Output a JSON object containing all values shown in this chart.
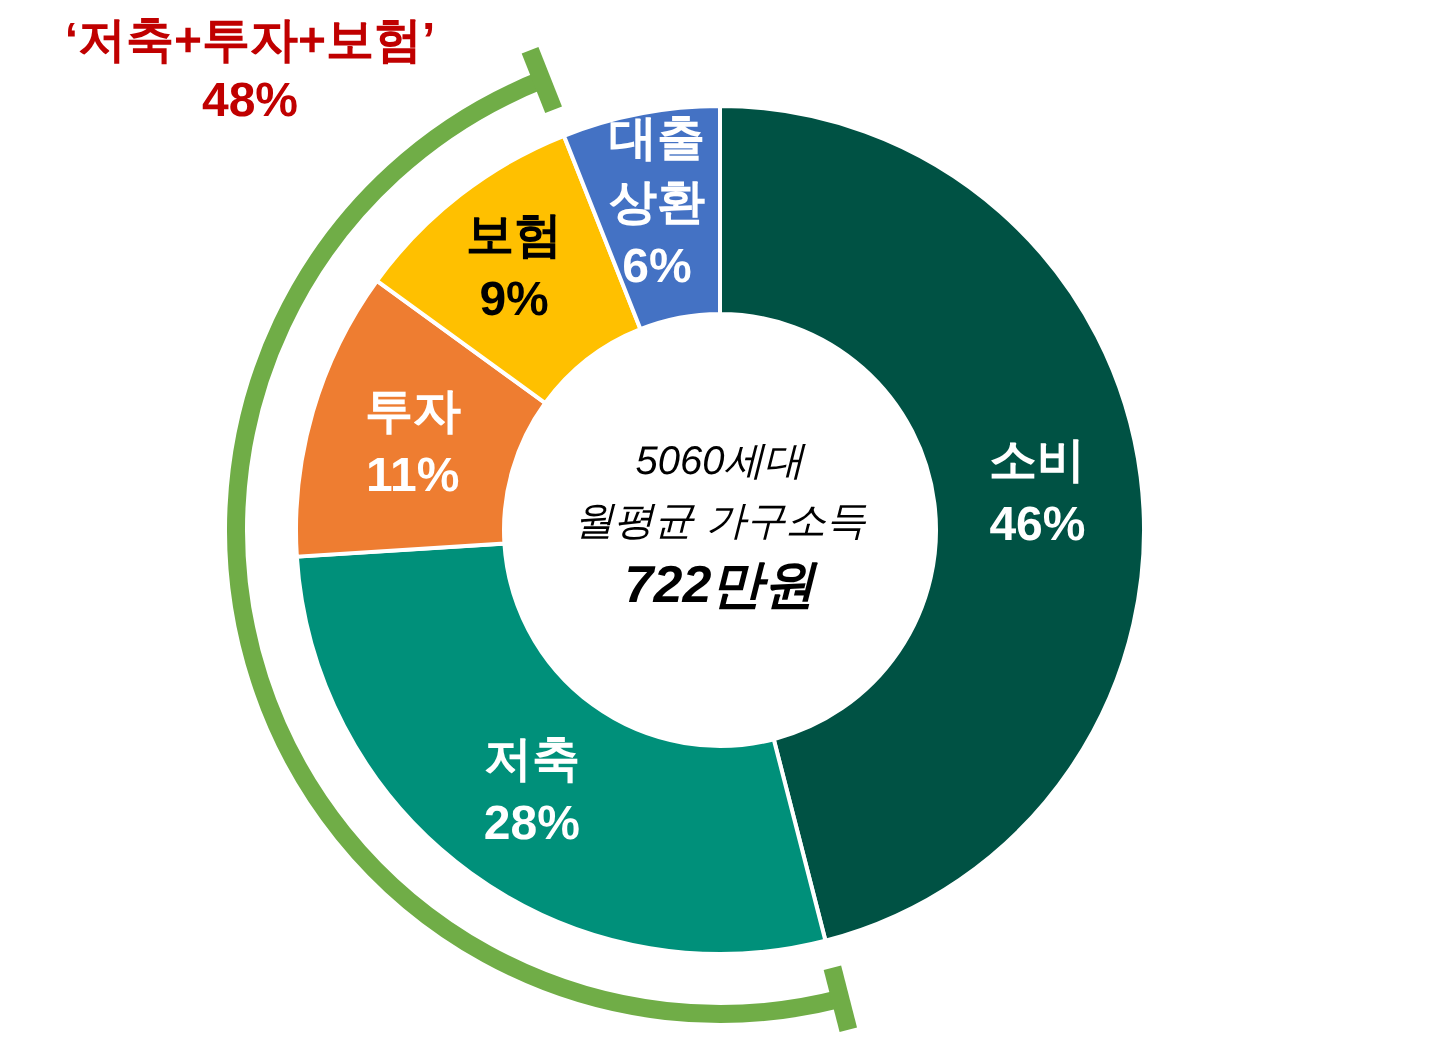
{
  "chart_data": {
    "type": "donut",
    "categories": [
      "소비",
      "저축",
      "투자",
      "보험",
      "대출 상환"
    ],
    "values": [
      46,
      28,
      11,
      9,
      6
    ],
    "colors": [
      "#005244",
      "#00907a",
      "#ee7d31",
      "#ffc000",
      "#4472c4"
    ],
    "value_labels": [
      "46%",
      "28%",
      "11%",
      "9%",
      "6%"
    ],
    "annotations": [
      "5060세대",
      "월평균 가구소득",
      "722만원",
      "‘저축+투자+보험’",
      "48%"
    ]
  }
}
